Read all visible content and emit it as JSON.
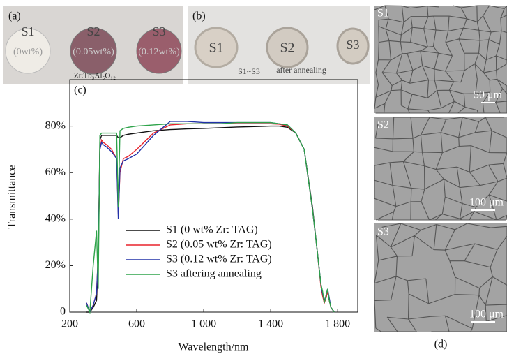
{
  "chart_data": {
    "type": "line",
    "label": "(c)",
    "x_label": "Wavelength/nm",
    "y_label": "Transmittance",
    "x": [
      300,
      320,
      340,
      360,
      370,
      380,
      390,
      400,
      420,
      450,
      480,
      490,
      500,
      520,
      550,
      600,
      700,
      800,
      900,
      1000,
      1100,
      1200,
      1300,
      1400,
      1450,
      1500,
      1550,
      1600,
      1650,
      1680,
      1700,
      1710,
      1720,
      1730,
      1740,
      1750,
      1760,
      1780
    ],
    "series": [
      {
        "name": "S1 (0 wt% Zr: TAG)",
        "color": "#111111",
        "values": [
          0,
          0,
          2,
          5,
          20,
          74,
          76,
          76,
          76,
          76,
          76,
          75,
          75,
          76,
          76.5,
          77,
          78,
          78.5,
          78.8,
          79,
          79.3,
          79.6,
          79.8,
          80,
          80,
          79.5,
          77,
          70,
          45,
          25,
          12,
          8,
          4,
          6,
          9,
          5,
          2,
          0
        ]
      },
      {
        "name": "S2 (0.05 wt% Zr: TAG)",
        "color": "#e8222b",
        "values": [
          4,
          0,
          3,
          8,
          25,
          70,
          74,
          73,
          72,
          70,
          66,
          42,
          60,
          66,
          67,
          70,
          77,
          80.5,
          81,
          81,
          81,
          81,
          81,
          81,
          80.8,
          80,
          77,
          70,
          44,
          25,
          11,
          7,
          4,
          6,
          9,
          5,
          2,
          0
        ]
      },
      {
        "name": "S3 (0.12 wt% Zr: TAG)",
        "color": "#2232a8",
        "values": [
          4,
          0,
          3,
          8,
          25,
          70,
          73,
          72,
          71,
          69,
          66,
          40,
          62,
          65,
          66,
          68,
          76,
          82,
          82,
          81.5,
          81.5,
          81.5,
          81.5,
          81.5,
          81,
          80.5,
          77,
          70,
          44,
          25,
          12,
          8,
          5,
          7,
          10,
          6,
          2,
          0
        ]
      },
      {
        "name": "S3 aftering annealing",
        "color": "#2ea34a",
        "values": [
          3,
          0,
          20,
          35,
          10,
          76,
          77,
          77,
          77,
          77,
          77,
          45,
          78,
          79,
          79.5,
          80,
          80.5,
          81,
          81,
          81,
          81,
          81.5,
          81.5,
          81.5,
          81,
          80.5,
          77,
          70,
          44,
          25,
          12,
          9,
          4,
          7,
          10,
          5,
          2,
          0
        ]
      }
    ],
    "xlim": [
      200,
      1920
    ],
    "ylim": [
      0,
      100
    ],
    "xticks": [
      200,
      600,
      {
        "value": 1000,
        "label": "1 000"
      },
      {
        "value": 1400,
        "label": "1 400"
      },
      {
        "value": 1800,
        "label": "1 800"
      }
    ],
    "yticks": [
      0,
      {
        "value": 20,
        "label": "20%"
      },
      {
        "value": 40,
        "label": "40%"
      },
      {
        "value": 60,
        "label": "60%"
      },
      {
        "value": 80,
        "label": "80%"
      }
    ]
  },
  "panel_a": {
    "label": "(a)",
    "samples": [
      {
        "name": "S1",
        "composition": "(0wt%)"
      },
      {
        "name": "S2",
        "composition": "(0.05wt%)"
      },
      {
        "name": "S3",
        "composition": "(0.12wt%)"
      }
    ],
    "formula": "Zr:Tb₃Al₅O₁₂"
  },
  "panel_b": {
    "label": "(b)",
    "samples": [
      "S1",
      "S2",
      "S3"
    ],
    "caption_range": "S1~S3",
    "caption_state": "after annealing"
  },
  "panel_d": {
    "label": "(d)",
    "images": [
      {
        "name": "S1",
        "scale": "50 μm"
      },
      {
        "name": "S2",
        "scale": "100 μm"
      },
      {
        "name": "S3",
        "scale": "100 μm"
      }
    ]
  }
}
